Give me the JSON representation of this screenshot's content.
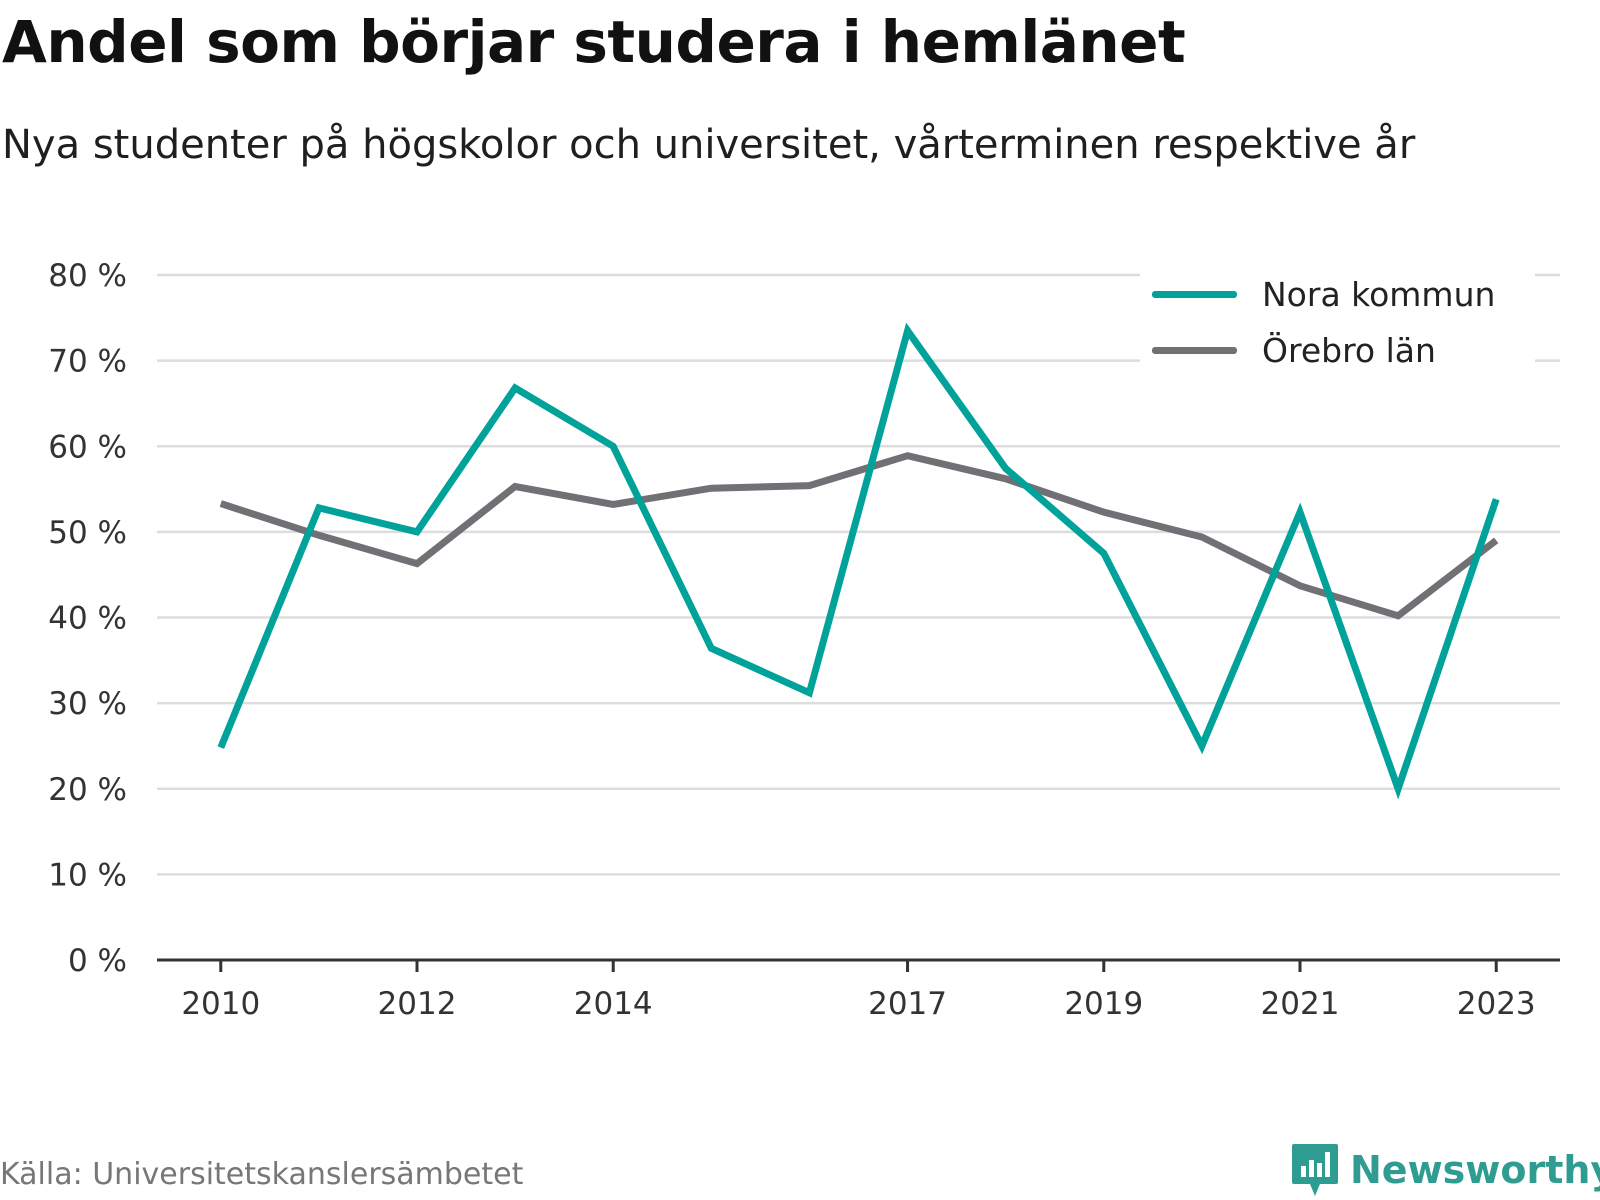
{
  "header": {
    "title": "Andel som börjar studera i hemlänet",
    "subtitle": "Nya studenter på högskolor och universitet, vårterminen respektive år"
  },
  "footer": {
    "source": "Källa: Universitetskanslersämbetet",
    "brand": "Newsworthy",
    "brand_color": "#2f9c92"
  },
  "chart_data": {
    "type": "line",
    "title": "Andel som börjar studera i hemlänet",
    "subtitle": "Nya studenter på högskolor och universitet, vårterminen respektive år",
    "x": [
      2010,
      2011,
      2012,
      2013,
      2014,
      2015,
      2016,
      2017,
      2018,
      2019,
      2020,
      2021,
      2022,
      2023
    ],
    "x_tick_values": [
      2010,
      2012,
      2014,
      2017,
      2019,
      2021,
      2023
    ],
    "x_tick_labels": [
      "2010",
      "2012",
      "2014",
      "2017",
      "2019",
      "2021",
      "2023"
    ],
    "xlim": [
      2009.35,
      2023.65
    ],
    "ylim": [
      0,
      80
    ],
    "y_tick_values": [
      0,
      10,
      20,
      30,
      40,
      50,
      60,
      70,
      80
    ],
    "y_tick_labels": [
      "0 %",
      "10 %",
      "20 %",
      "30 %",
      "40 %",
      "50 %",
      "60 %",
      "70 %",
      "80 %"
    ],
    "grid": "horizontal",
    "legend_position": "top-right",
    "series": [
      {
        "name": "Nora kommun",
        "color": "#00a29a",
        "values": [
          24.8,
          52.8,
          50.0,
          66.8,
          60.0,
          36.4,
          31.2,
          73.5,
          57.4,
          47.5,
          25.0,
          52.3,
          20.0,
          53.8
        ]
      },
      {
        "name": "Örebro län",
        "color": "#707075",
        "values": [
          53.3,
          49.6,
          46.3,
          55.3,
          53.2,
          55.1,
          55.4,
          58.9,
          56.2,
          52.3,
          49.4,
          43.7,
          40.2,
          49.0
        ]
      }
    ]
  }
}
